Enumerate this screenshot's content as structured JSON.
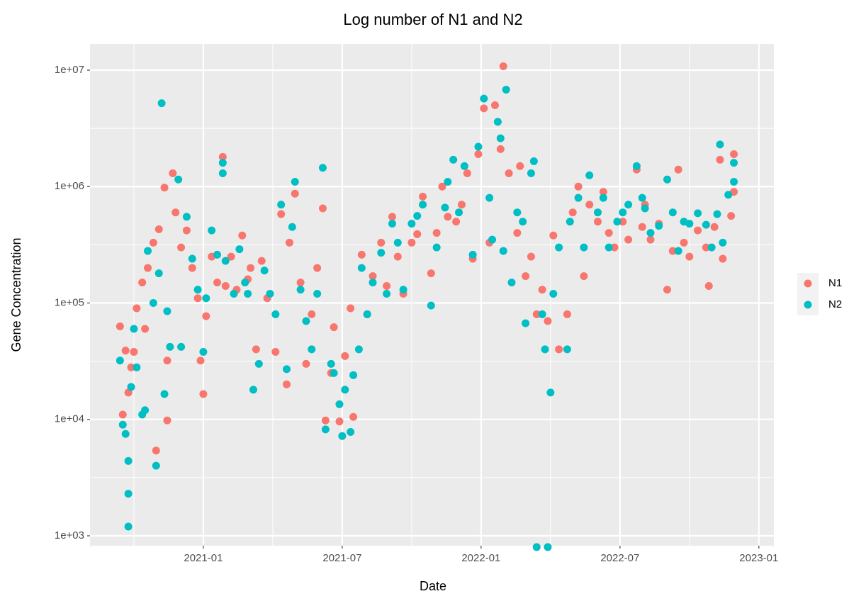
{
  "chart_data": {
    "type": "scatter",
    "title": "Log number of N1 and N2",
    "x_label": "Date",
    "y_label": "Gene Concentration",
    "log_y": true,
    "grid": true,
    "legend": "right",
    "xlim": [
      2020.592,
      2023.054
    ],
    "ylim": [
      822,
      16800000
    ],
    "xticks": [
      {
        "value": 2021.0,
        "label": "2021-01"
      },
      {
        "value": 2021.5,
        "label": "2021-07"
      },
      {
        "value": 2022.0,
        "label": "2022-01"
      },
      {
        "value": 2022.5,
        "label": "2022-07"
      },
      {
        "value": 2023.0,
        "label": "2023-01"
      }
    ],
    "yticks": [
      {
        "value": 1000,
        "label": "1e+03"
      },
      {
        "value": 10000,
        "label": "1e+04"
      },
      {
        "value": 100000,
        "label": "1e+05"
      },
      {
        "value": 1000000,
        "label": "1e+06"
      },
      {
        "value": 10000000,
        "label": "1e+07"
      }
    ],
    "series": [
      {
        "name": "N1",
        "color": "#F8766D",
        "x": [
          2020.7,
          2020.71,
          2020.72,
          2020.73,
          2020.74,
          2020.75,
          2020.76,
          2020.78,
          2020.79,
          2020.8,
          2020.82,
          2020.83,
          2020.84,
          2020.86,
          2020.87,
          2020.87,
          2020.89,
          2020.9,
          2020.92,
          2020.94,
          2020.96,
          2020.98,
          2020.99,
          2021.0,
          2021.01,
          2021.03,
          2021.05,
          2021.07,
          2021.08,
          2021.1,
          2021.12,
          2021.14,
          2021.16,
          2021.17,
          2021.19,
          2021.21,
          2021.23,
          2021.26,
          2021.28,
          2021.3,
          2021.31,
          2021.33,
          2021.35,
          2021.37,
          2021.39,
          2021.41,
          2021.43,
          2021.44,
          2021.46,
          2021.47,
          2021.49,
          2021.51,
          2021.53,
          2021.54,
          2021.57,
          2021.59,
          2021.61,
          2021.64,
          2021.66,
          2021.68,
          2021.7,
          2021.72,
          2021.75,
          2021.77,
          2021.79,
          2021.82,
          2021.84,
          2021.86,
          2021.88,
          2021.91,
          2021.93,
          2021.95,
          2021.97,
          2021.99,
          2022.01,
          2022.03,
          2022.05,
          2022.07,
          2022.08,
          2022.1,
          2022.13,
          2022.14,
          2022.16,
          2022.18,
          2022.2,
          2022.22,
          2022.24,
          2022.26,
          2022.28,
          2022.31,
          2022.33,
          2022.35,
          2022.37,
          2022.39,
          2022.42,
          2022.44,
          2022.46,
          2022.48,
          2022.51,
          2022.53,
          2022.56,
          2022.58,
          2022.59,
          2022.61,
          2022.64,
          2022.67,
          2022.69,
          2022.71,
          2022.73,
          2022.75,
          2022.78,
          2022.81,
          2022.82,
          2022.84,
          2022.86,
          2022.87,
          2022.9,
          2022.91,
          2022.91
        ],
        "values": [
          63000,
          11000,
          39000,
          17000,
          28000,
          38000,
          90000,
          150000,
          60000,
          200000,
          330000,
          5400,
          430000,
          980000,
          32000,
          9800,
          1300000,
          600000,
          300000,
          420000,
          200000,
          110000,
          32000,
          16500,
          77000,
          250000,
          150000,
          1800000,
          140000,
          250000,
          130000,
          380000,
          160000,
          200000,
          40000,
          230000,
          110000,
          38000,
          580000,
          20000,
          330000,
          870000,
          150000,
          30000,
          80000,
          200000,
          650000,
          9800,
          25000,
          62000,
          9600,
          35000,
          90000,
          10500,
          260000,
          80000,
          170000,
          330000,
          140000,
          550000,
          250000,
          120000,
          330000,
          390000,
          820000,
          180000,
          400000,
          1000000,
          550000,
          500000,
          700000,
          1300000,
          240000,
          1900000,
          4700000,
          330000,
          5000000,
          2100000,
          10800000,
          1300000,
          400000,
          1500000,
          170000,
          250000,
          80000,
          130000,
          70000,
          380000,
          40000,
          80000,
          600000,
          1000000,
          170000,
          700000,
          500000,
          900000,
          400000,
          300000,
          500000,
          350000,
          1400000,
          450000,
          700000,
          350000,
          480000,
          130000,
          280000,
          1400000,
          330000,
          250000,
          420000,
          300000,
          140000,
          450000,
          1700000,
          240000,
          560000,
          1900000,
          900000
        ]
      },
      {
        "name": "N2",
        "color": "#00BFC4",
        "x": [
          2020.7,
          2020.71,
          2020.72,
          2020.73,
          2020.73,
          2020.73,
          2020.74,
          2020.75,
          2020.76,
          2020.78,
          2020.79,
          2020.8,
          2020.82,
          2020.83,
          2020.84,
          2020.85,
          2020.86,
          2020.87,
          2020.88,
          2020.91,
          2020.92,
          2020.94,
          2020.96,
          2020.98,
          2021.0,
          2021.01,
          2021.03,
          2021.05,
          2021.07,
          2021.07,
          2021.08,
          2021.11,
          2021.13,
          2021.15,
          2021.16,
          2021.18,
          2021.2,
          2021.22,
          2021.24,
          2021.26,
          2021.28,
          2021.3,
          2021.32,
          2021.33,
          2021.35,
          2021.37,
          2021.39,
          2021.41,
          2021.43,
          2021.44,
          2021.46,
          2021.47,
          2021.49,
          2021.5,
          2021.51,
          2021.53,
          2021.54,
          2021.56,
          2021.57,
          2021.59,
          2021.61,
          2021.64,
          2021.66,
          2021.68,
          2021.7,
          2021.72,
          2021.75,
          2021.77,
          2021.79,
          2021.82,
          2021.84,
          2021.87,
          2021.88,
          2021.9,
          2021.92,
          2021.94,
          2021.97,
          2021.99,
          2022.01,
          2022.03,
          2022.04,
          2022.06,
          2022.07,
          2022.08,
          2022.09,
          2022.11,
          2022.13,
          2022.15,
          2022.16,
          2022.18,
          2022.19,
          2022.2,
          2022.22,
          2022.23,
          2022.24,
          2022.25,
          2022.26,
          2022.28,
          2022.31,
          2022.32,
          2022.35,
          2022.37,
          2022.39,
          2022.42,
          2022.44,
          2022.46,
          2022.49,
          2022.51,
          2022.53,
          2022.56,
          2022.58,
          2022.59,
          2022.61,
          2022.64,
          2022.67,
          2022.69,
          2022.71,
          2022.73,
          2022.75,
          2022.78,
          2022.81,
          2022.83,
          2022.85,
          2022.86,
          2022.87,
          2022.89,
          2022.91,
          2022.91
        ],
        "values": [
          32000,
          9000,
          7500,
          4400,
          1200,
          2300,
          19000,
          60000,
          28000,
          11000,
          12000,
          280000,
          100000,
          4000,
          180000,
          5200000,
          16500,
          85000,
          42000,
          1150000,
          42000,
          550000,
          240000,
          130000,
          38000,
          110000,
          420000,
          260000,
          1600000,
          1300000,
          230000,
          120000,
          290000,
          150000,
          120000,
          18000,
          30000,
          190000,
          120000,
          80000,
          700000,
          27000,
          450000,
          1100000,
          130000,
          70000,
          40000,
          120000,
          1450000,
          8200,
          30000,
          25000,
          13500,
          7200,
          18000,
          7800,
          24000,
          40000,
          200000,
          80000,
          150000,
          270000,
          120000,
          480000,
          330000,
          130000,
          480000,
          560000,
          700000,
          95000,
          300000,
          660000,
          1100000,
          1700000,
          600000,
          1500000,
          260000,
          2200000,
          5700000,
          800000,
          350000,
          3600000,
          2600000,
          280000,
          6800000,
          150000,
          600000,
          500000,
          67000,
          1300000,
          1650000,
          800,
          80000,
          40000,
          800,
          17000,
          120000,
          300000,
          40000,
          500000,
          800000,
          300000,
          1250000,
          600000,
          800000,
          300000,
          500000,
          600000,
          700000,
          1500000,
          800000,
          650000,
          400000,
          460000,
          1150000,
          600000,
          280000,
          500000,
          480000,
          590000,
          470000,
          300000,
          580000,
          2300000,
          330000,
          850000,
          1600000,
          1100000
        ]
      }
    ]
  }
}
